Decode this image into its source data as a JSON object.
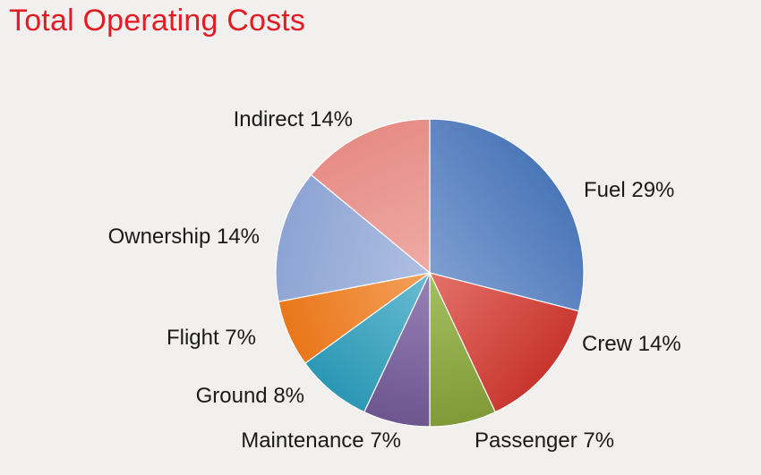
{
  "chart_data": {
    "type": "pie",
    "title": "Total Operating Costs",
    "slices": [
      {
        "label": "Fuel 29%",
        "value": 29,
        "colors": [
          "#4a76b8",
          "#93aedb"
        ]
      },
      {
        "label": "Crew 14%",
        "value": 14,
        "colors": [
          "#c7352d",
          "#ef8a82"
        ]
      },
      {
        "label": "Passenger 7%",
        "value": 7,
        "colors": [
          "#7f9a36",
          "#b5cf72"
        ]
      },
      {
        "label": "Maintenance 7%",
        "value": 7,
        "colors": [
          "#6c5590",
          "#a995c6"
        ]
      },
      {
        "label": "Ground 8%",
        "value": 8,
        "colors": [
          "#2b97b3",
          "#83cbe0"
        ]
      },
      {
        "label": "Flight 7%",
        "value": 7,
        "colors": [
          "#ea7619",
          "#f7b276"
        ]
      },
      {
        "label": "Ownership 14%",
        "value": 14,
        "colors": [
          "#8da3d3",
          "#bccbe8"
        ]
      },
      {
        "label": "Indirect 14%",
        "value": 14,
        "colors": [
          "#e68c85",
          "#f2b7b1"
        ]
      }
    ]
  }
}
